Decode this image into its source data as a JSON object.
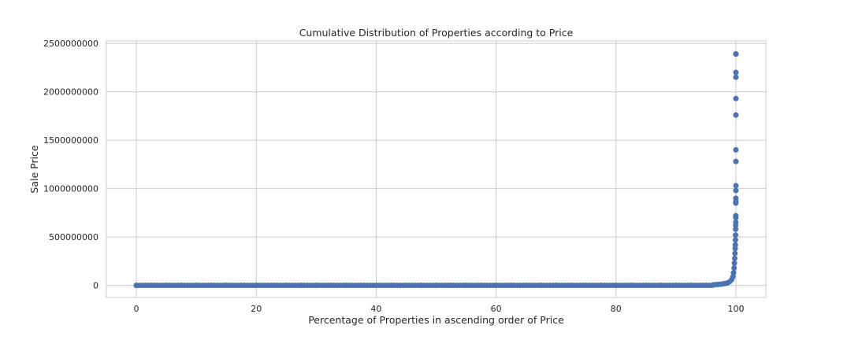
{
  "chart_data": {
    "type": "scatter",
    "title": "Cumulative Distribution of Properties according to Price",
    "xlabel": "Percentage of Properties in ascending order of Price",
    "ylabel": "Sale Price",
    "xlim": [
      -5,
      105
    ],
    "ylim": [
      -125000000,
      2525000000
    ],
    "xticks": [
      0,
      20,
      40,
      60,
      80,
      100
    ],
    "yticks": [
      0,
      500000000,
      1000000000,
      1500000000,
      2000000000,
      2500000000
    ],
    "xtick_labels": [
      "0",
      "20",
      "40",
      "60",
      "80",
      "100"
    ],
    "ytick_labels": [
      "0",
      "500000000",
      "1000000000",
      "1500000000",
      "2000000000",
      "2500000000"
    ],
    "grid": true,
    "marker_color": "#4c72b0",
    "series": [
      {
        "x": [
          0,
          2.5,
          5,
          7.5,
          10,
          12.5,
          15,
          17.5,
          20,
          22.5,
          25,
          27.5,
          30,
          32.5,
          35,
          37.5,
          40,
          42.5,
          45,
          47.5,
          50,
          52.5,
          55,
          57.5,
          60,
          62.5,
          65,
          67.5,
          70,
          72.5,
          75,
          77.5,
          80,
          82.5,
          85,
          87.5,
          90,
          92.5,
          95,
          96.2,
          96.6,
          97,
          97.4,
          97.8,
          98.2,
          98.6,
          99,
          99.3,
          99.5,
          99.6,
          99.7,
          99.75,
          99.8,
          99.84,
          99.87,
          99.9,
          99.92,
          99.94,
          99.95,
          99.96,
          99.97,
          99.975,
          99.98,
          99.983,
          99.986,
          99.988,
          99.99,
          99.992,
          99.994,
          99.995,
          99.996,
          99.997,
          99.998,
          99.999,
          99.9995,
          99.9998,
          100
        ],
        "y": [
          0,
          0,
          0,
          0,
          0,
          0,
          0,
          0,
          0,
          0,
          0,
          0,
          0,
          0,
          0,
          0,
          0,
          0,
          0,
          0,
          0,
          0,
          0,
          0,
          0,
          0,
          0,
          0,
          0,
          0,
          0,
          0,
          0,
          0,
          0,
          0,
          0,
          0,
          0,
          5000000,
          8000000,
          10000000,
          12000000,
          15000000,
          20000000,
          25000000,
          40000000,
          60000000,
          90000000,
          130000000,
          180000000,
          230000000,
          280000000,
          330000000,
          380000000,
          420000000,
          470000000,
          520000000,
          580000000,
          620000000,
          650000000,
          700000000,
          720000000,
          850000000,
          870000000,
          900000000,
          980000000,
          1030000000,
          1280000000,
          1400000000,
          1760000000,
          1930000000,
          2150000000,
          2200000000,
          2390000000,
          2390000000,
          2390000000
        ]
      }
    ]
  }
}
